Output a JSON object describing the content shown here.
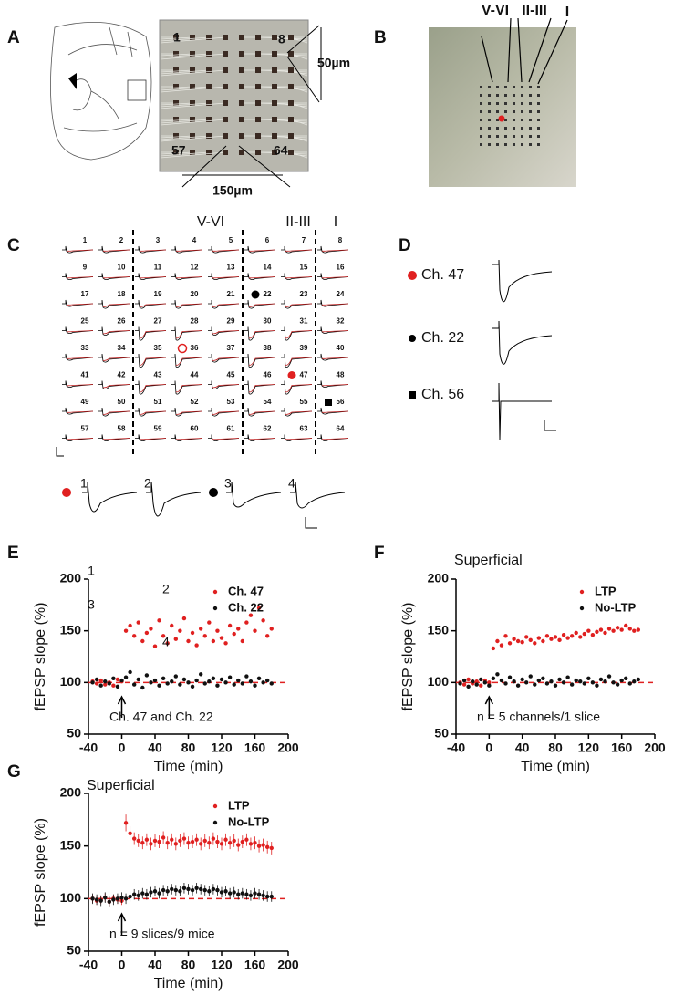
{
  "panel_labels": [
    "A",
    "B",
    "C",
    "D",
    "E",
    "F",
    "G"
  ],
  "panel_a": {
    "corners": [
      "1",
      "8",
      "57",
      "64"
    ],
    "pitch": "50µm",
    "span": "150µm"
  },
  "panel_b": {
    "layers": [
      "V-VI",
      "II-III",
      "I"
    ]
  },
  "panel_c": {
    "layers": [
      "V-VI",
      "II-III",
      "I"
    ],
    "channels": [
      1,
      2,
      3,
      4,
      5,
      6,
      7,
      8,
      9,
      10,
      11,
      12,
      13,
      14,
      15,
      16,
      17,
      18,
      19,
      20,
      21,
      22,
      23,
      24,
      25,
      26,
      27,
      28,
      29,
      30,
      31,
      32,
      33,
      34,
      35,
      36,
      37,
      38,
      39,
      40,
      41,
      42,
      43,
      44,
      45,
      46,
      47,
      48,
      49,
      50,
      51,
      52,
      53,
      54,
      55,
      56,
      57,
      58,
      59,
      60,
      61,
      62,
      63,
      64
    ],
    "traces": [
      "1",
      "2",
      "3",
      "4"
    ]
  },
  "panel_d": {
    "channels": [
      "Ch. 47",
      "Ch. 22",
      "Ch. 56"
    ]
  },
  "chart_data": [
    {
      "type": "scatter",
      "xlabel": "Time (min)",
      "ylabel": "fEPSP slope (%)",
      "xlim": [
        -40,
        200
      ],
      "ylim": [
        50,
        200
      ],
      "xticks": [
        -40,
        0,
        40,
        80,
        120,
        160,
        200
      ],
      "yticks": [
        50,
        100,
        150,
        200
      ],
      "legend": "upper right",
      "hline": 100,
      "hline_color": "#e02020",
      "annotations": [
        "1",
        "2",
        "3",
        "4",
        "Ch. 47 and Ch. 22"
      ],
      "x": [
        -35,
        -30,
        -25,
        -20,
        -15,
        -10,
        -5,
        0,
        5,
        10,
        15,
        20,
        25,
        30,
        35,
        40,
        45,
        50,
        55,
        60,
        65,
        70,
        75,
        80,
        85,
        90,
        95,
        100,
        105,
        110,
        115,
        120,
        125,
        130,
        135,
        140,
        145,
        150,
        155,
        160,
        165,
        170,
        175,
        180
      ],
      "series": [
        {
          "name": "Ch. 47",
          "color": "#e02020",
          "values": [
            101,
            99,
            102,
            98,
            100,
            97,
            103,
            101,
            150,
            155,
            145,
            158,
            140,
            148,
            152,
            135,
            160,
            145,
            138,
            155,
            142,
            150,
            162,
            140,
            148,
            136,
            152,
            145,
            158,
            140,
            150,
            143,
            138,
            155,
            147,
            152,
            140,
            158,
            165,
            150,
            172,
            160,
            145,
            152
          ]
        },
        {
          "name": "Ch. 22",
          "color": "#111111",
          "values": [
            100,
            103,
            97,
            101,
            99,
            104,
            96,
            102,
            105,
            110,
            98,
            103,
            95,
            107,
            100,
            102,
            97,
            104,
            99,
            101,
            106,
            98,
            103,
            100,
            96,
            102,
            108,
            99,
            101,
            104,
            97,
            103,
            100,
            105,
            98,
            102,
            99,
            106,
            101,
            97,
            104,
            100,
            102,
            99
          ]
        }
      ]
    },
    {
      "type": "scatter",
      "xlabel": "Time (min)",
      "ylabel": "fEPSP slope (%)",
      "xlim": [
        -40,
        200
      ],
      "ylim": [
        50,
        200
      ],
      "xticks": [
        -40,
        0,
        40,
        80,
        120,
        160,
        200
      ],
      "yticks": [
        50,
        100,
        150,
        200
      ],
      "legend": "upper right",
      "hline": 100,
      "hline_color": "#e02020",
      "annotations": [
        "Superficial",
        "n = 5 channels/1 slice"
      ],
      "x": [
        -35,
        -30,
        -25,
        -20,
        -15,
        -10,
        -5,
        0,
        5,
        10,
        15,
        20,
        25,
        30,
        35,
        40,
        45,
        50,
        55,
        60,
        65,
        70,
        75,
        80,
        85,
        90,
        95,
        100,
        105,
        110,
        115,
        120,
        125,
        130,
        135,
        140,
        145,
        150,
        155,
        160,
        165,
        170,
        175,
        180
      ],
      "series": [
        {
          "name": "LTP",
          "color": "#e02020",
          "values": [
            100,
            98,
            103,
            99,
            101,
            97,
            102,
            100,
            133,
            140,
            136,
            145,
            138,
            142,
            140,
            139,
            144,
            141,
            138,
            143,
            140,
            145,
            142,
            144,
            141,
            146,
            143,
            145,
            148,
            144,
            147,
            150,
            146,
            149,
            151,
            148,
            152,
            150,
            153,
            151,
            155,
            152,
            150,
            151
          ]
        },
        {
          "name": "No-LTP",
          "color": "#111111",
          "values": [
            99,
            102,
            96,
            101,
            98,
            103,
            100,
            97,
            104,
            108,
            102,
            99,
            105,
            101,
            97,
            103,
            100,
            106,
            98,
            102,
            104,
            99,
            101,
            97,
            103,
            100,
            105,
            98,
            102,
            101,
            99,
            104,
            100,
            97,
            103,
            101,
            106,
            100,
            98,
            102,
            104,
            99,
            101,
            103
          ]
        }
      ]
    },
    {
      "type": "scatter",
      "xlabel": "Time (min)",
      "ylabel": "fEPSP slope (%)",
      "xlim": [
        -40,
        200
      ],
      "ylim": [
        50,
        200
      ],
      "xticks": [
        -40,
        0,
        40,
        80,
        120,
        160,
        200
      ],
      "yticks": [
        50,
        100,
        150,
        200
      ],
      "legend": "upper right",
      "hline": 100,
      "hline_color": "#e02020",
      "annotations": [
        "Superficial",
        "n = 9 slices/9 mice"
      ],
      "x": [
        -35,
        -30,
        -25,
        -20,
        -15,
        -10,
        -5,
        0,
        5,
        10,
        15,
        20,
        25,
        30,
        35,
        40,
        45,
        50,
        55,
        60,
        65,
        70,
        75,
        80,
        85,
        90,
        95,
        100,
        105,
        110,
        115,
        120,
        125,
        130,
        135,
        140,
        145,
        150,
        155,
        160,
        165,
        170,
        175,
        180
      ],
      "series": [
        {
          "name": "LTP",
          "color": "#e02020",
          "values": [
            100,
            98,
            99,
            101,
            97,
            100,
            99,
            98,
            172,
            162,
            157,
            155,
            153,
            156,
            152,
            155,
            154,
            158,
            153,
            156,
            152,
            155,
            157,
            153,
            154,
            156,
            152,
            155,
            153,
            157,
            154,
            152,
            156,
            153,
            155,
            151,
            154,
            156,
            152,
            153,
            150,
            151,
            149,
            148
          ],
          "errors": [
            4,
            4,
            4,
            4,
            4,
            4,
            4,
            4,
            8,
            7,
            6,
            6,
            6,
            6,
            6,
            6,
            6,
            6,
            6,
            6,
            6,
            6,
            6,
            6,
            6,
            6,
            6,
            6,
            6,
            6,
            6,
            6,
            6,
            6,
            6,
            6,
            6,
            6,
            6,
            6,
            6,
            6,
            6,
            6
          ]
        },
        {
          "name": "No-LTP",
          "color": "#111111",
          "values": [
            100,
            99,
            98,
            101,
            97,
            99,
            100,
            101,
            100,
            102,
            104,
            103,
            105,
            104,
            106,
            107,
            105,
            108,
            107,
            109,
            108,
            107,
            110,
            109,
            108,
            110,
            109,
            108,
            107,
            109,
            108,
            106,
            107,
            105,
            106,
            104,
            105,
            104,
            103,
            105,
            104,
            103,
            102,
            102
          ],
          "errors": [
            5,
            5,
            5,
            5,
            5,
            5,
            5,
            5,
            5,
            5,
            5,
            5,
            5,
            5,
            5,
            5,
            5,
            5,
            5,
            5,
            5,
            5,
            5,
            5,
            5,
            5,
            5,
            5,
            5,
            5,
            5,
            5,
            5,
            5,
            5,
            5,
            5,
            5,
            5,
            5,
            5,
            5,
            5,
            5
          ]
        }
      ]
    }
  ]
}
